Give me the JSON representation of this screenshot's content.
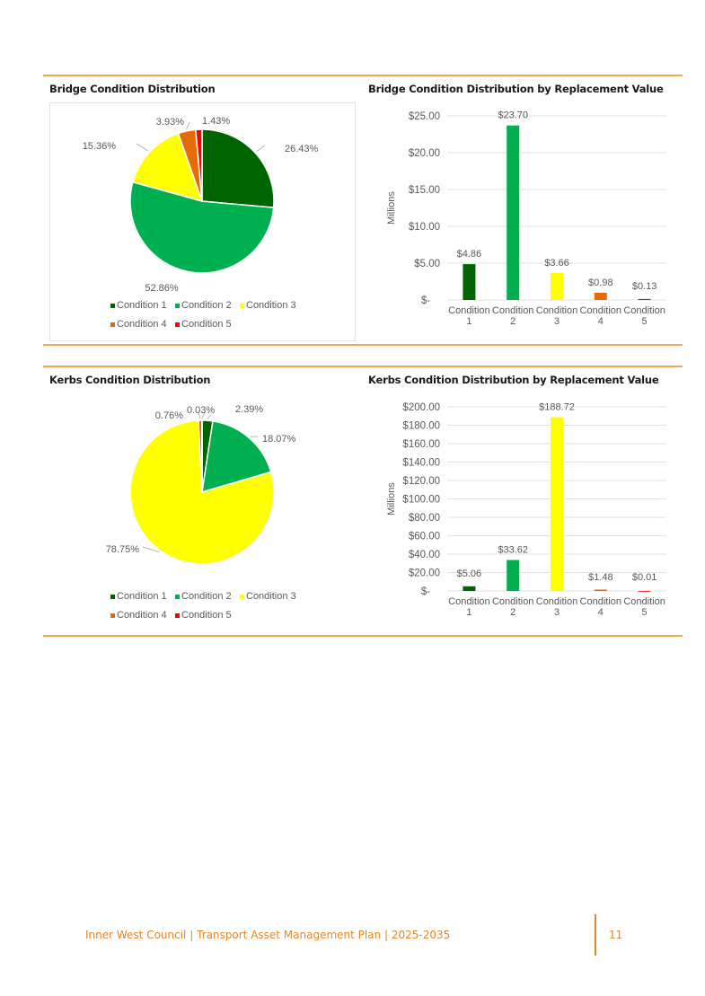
{
  "colors": {
    "condition_1": "#006400",
    "condition_2": "#00b050",
    "condition_3": "#ffff00",
    "condition_4": "#e36c09",
    "condition_5": "#ff0000",
    "accent": "#f2a65a",
    "footer": "#e2862b"
  },
  "footer": {
    "text": "Inner West Council | Transport Asset Management Plan | 2025-2035",
    "page_number": "11"
  },
  "chart_data": [
    {
      "type": "pie",
      "title": "Bridge Condition Distribution",
      "categories": [
        "Condition 1",
        "Condition 2",
        "Condition 3",
        "Condition 4",
        "Condition 5"
      ],
      "values": [
        26.43,
        52.86,
        15.36,
        3.93,
        1.43
      ],
      "labels": [
        "26.43%",
        "52.86%",
        "15.36%",
        "3.93%",
        "1.43%"
      ],
      "legend": "bottom"
    },
    {
      "type": "bar",
      "title": "Bridge Condition Distribution by Replacement Value",
      "categories": [
        "Condition 1",
        "Condition 2",
        "Condition 3",
        "Condition 4",
        "Condition 5"
      ],
      "values": [
        4.86,
        23.7,
        3.66,
        0.98,
        0.13
      ],
      "labels": [
        "$4.86",
        "$23.70",
        "$3.66",
        "$0.98",
        "$0.13"
      ],
      "ylabel": "Millions",
      "ylim": [
        0,
        25
      ],
      "yticks": [
        "$-",
        "$5.00",
        "$10.00",
        "$15.00",
        "$20.00",
        "$25.00"
      ],
      "grid": true
    },
    {
      "type": "pie",
      "title": "Kerbs Condition Distribution",
      "categories": [
        "Condition 1",
        "Condition 2",
        "Condition 3",
        "Condition 4",
        "Condition 5"
      ],
      "values": [
        2.39,
        18.07,
        78.75,
        0.76,
        0.03
      ],
      "labels": [
        "2.39%",
        "18.07%",
        "78.75%",
        "0.76%",
        "0.03%"
      ],
      "legend": "bottom"
    },
    {
      "type": "bar",
      "title": "Kerbs Condition Distribution by Replacement Value",
      "categories": [
        "Condition 1",
        "Condition 2",
        "Condition 3",
        "Condition 4",
        "Condition 5"
      ],
      "values": [
        5.06,
        33.62,
        188.72,
        1.48,
        0.01
      ],
      "labels": [
        "$5.06",
        "$33.62",
        "$188.72",
        "$1.48",
        "$0.01"
      ],
      "ylabel": "Millions",
      "ylim": [
        0,
        200
      ],
      "yticks": [
        "$-",
        "$20.00",
        "$40.00",
        "$60.00",
        "$80.00",
        "$100.00",
        "$120.00",
        "$140.00",
        "$160.00",
        "$180.00",
        "$200.00"
      ],
      "grid": true
    }
  ]
}
